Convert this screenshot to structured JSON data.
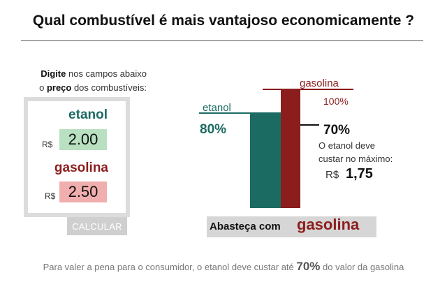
{
  "title": "Qual combustível é mais vantajoso economicamente ?",
  "instructions": {
    "line1_bold": "Digite",
    "line1_rest": " nos campos abaixo",
    "line2_pre": "o ",
    "line2_bold": "preço",
    "line2_rest": " dos combustíveis:"
  },
  "form": {
    "ethanol_label": "etanol",
    "ethanol_currency": "R$",
    "ethanol_value": "2.00",
    "gasoline_label": "gasolina",
    "gasoline_currency": "R$",
    "gasoline_value": "2.50",
    "calculate_label": "CALCULAR"
  },
  "chart_data": {
    "type": "bar",
    "categories": [
      "etanol",
      "gasolina"
    ],
    "values": [
      80,
      100
    ],
    "unit": "%",
    "colors": [
      "#1c6b63",
      "#8c1d1d"
    ],
    "labels": {
      "ethanol_name": "etanol",
      "ethanol_pct": "80%",
      "gasoline_name": "gasolina",
      "gasoline_pct": "100%",
      "threshold_pct": "70%",
      "threshold_line1": "O etanol deve",
      "threshold_line2": "custar no máximo:",
      "threshold_currency": "R$",
      "threshold_price": "1,75"
    },
    "threshold": 70
  },
  "result": {
    "prefix": "Abasteça com",
    "fuel": "gasolina"
  },
  "footer": {
    "pre": "Para valer a pena para o consumidor, o etanol deve custar até ",
    "bold": "70%",
    "post": " do valor da gasolina"
  }
}
